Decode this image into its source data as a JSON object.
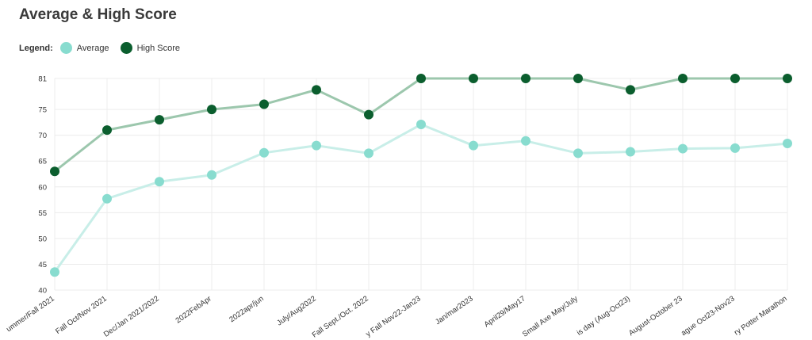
{
  "title": "Average & High Score",
  "legend": {
    "label": "Legend:",
    "items": [
      {
        "name": "Average",
        "color": "#88dccf"
      },
      {
        "name": "High Score",
        "color": "#0b5e2e"
      }
    ]
  },
  "chart_data": {
    "type": "line",
    "title": "Average & High Score",
    "xlabel": "",
    "ylabel": "",
    "ylim": [
      40,
      81
    ],
    "yticks": [
      40,
      45,
      50,
      55,
      60,
      65,
      70,
      75,
      81
    ],
    "grid": true,
    "legend_position": "top-left",
    "categories": [
      "ummer/Fall 2021",
      "Fall Oct/Nov 2021",
      "Dec/Jan 2021/2022",
      "2022FebApr",
      "2022apr/jun",
      "July/Aug2022",
      "Fall Sept./Oct. 2022",
      "y Fall Nov22-Jan23",
      "Jan/mar2023",
      "April29/May17",
      "Small Axe May/July",
      "is day (Aug-Oct23)",
      "August-October 23",
      "ague Oct23-Nov23",
      "ry Potter Marathon"
    ],
    "series": [
      {
        "name": "Average",
        "color": "#88dccf",
        "line_color": "#c8eee8",
        "values": [
          43.5,
          57.7,
          61,
          62.3,
          66.6,
          68,
          66.5,
          72.1,
          68,
          68.9,
          66.5,
          66.8,
          67.4,
          67.5,
          68.4
        ]
      },
      {
        "name": "High Score",
        "color": "#0b5e2e",
        "line_color": "#9cc7ad",
        "values": [
          63,
          71,
          73,
          75,
          76,
          78.8,
          74,
          81,
          81,
          81,
          81,
          78.8,
          81,
          81,
          81
        ]
      }
    ]
  }
}
